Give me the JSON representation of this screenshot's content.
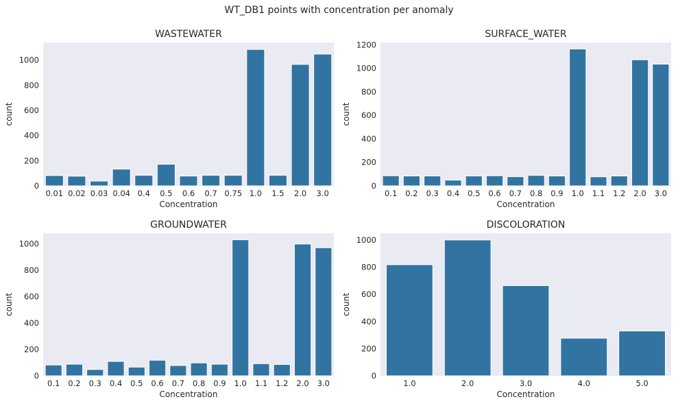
{
  "suptitle": "WT_DB1 points with concentration per anomaly",
  "colors": {
    "bar": "#3274a1",
    "plot_bg": "#eaeaf2",
    "bar_edge": "#ffffff"
  },
  "chart_data": [
    {
      "type": "bar",
      "title": "WASTEWATER",
      "xlabel": "Concentration",
      "ylabel": "count",
      "categories": [
        "0.01",
        "0.02",
        "0.03",
        "0.04",
        "0.4",
        "0.5",
        "0.6",
        "0.7",
        "0.75",
        "1.0",
        "1.5",
        "2.0",
        "3.0"
      ],
      "values": [
        82,
        77,
        38,
        133,
        84,
        172,
        78,
        84,
        84,
        1085,
        84,
        966,
        1048
      ],
      "ylim": [
        0,
        1140
      ],
      "yticks": [
        0,
        200,
        400,
        600,
        800,
        1000
      ],
      "grid": false
    },
    {
      "type": "bar",
      "title": "SURFACE_WATER",
      "xlabel": "Concentration",
      "ylabel": "count",
      "categories": [
        "0.1",
        "0.2",
        "0.3",
        "0.4",
        "0.5",
        "0.6",
        "0.7",
        "0.8",
        "0.9",
        "1.0",
        "1.1",
        "1.2",
        "2.0",
        "3.0"
      ],
      "values": [
        86,
        84,
        84,
        49,
        84,
        86,
        78,
        89,
        84,
        1165,
        77,
        84,
        1073,
        1036
      ],
      "ylim": [
        0,
        1220
      ],
      "yticks": [
        0,
        200,
        400,
        600,
        800,
        1000,
        1200
      ],
      "grid": false
    },
    {
      "type": "bar",
      "title": "GROUNDWATER",
      "xlabel": "Concentration",
      "ylabel": "count",
      "categories": [
        "0.1",
        "0.2",
        "0.3",
        "0.4",
        "0.5",
        "0.6",
        "0.7",
        "0.8",
        "0.9",
        "1.0",
        "1.1",
        "1.2",
        "2.0",
        "3.0"
      ],
      "values": [
        82,
        88,
        48,
        109,
        66,
        118,
        78,
        98,
        88,
        1030,
        92,
        86,
        998,
        970
      ],
      "ylim": [
        0,
        1080
      ],
      "yticks": [
        0,
        200,
        400,
        600,
        800,
        1000
      ],
      "grid": false
    },
    {
      "type": "bar",
      "title": "DISCOLORATION",
      "xlabel": "Concentration",
      "ylabel": "count",
      "categories": [
        "1.0",
        "2.0",
        "3.0",
        "4.0",
        "5.0"
      ],
      "values": [
        818,
        1000,
        664,
        277,
        330
      ],
      "ylim": [
        0,
        1050
      ],
      "yticks": [
        0,
        200,
        400,
        600,
        800,
        1000
      ],
      "grid": false
    }
  ]
}
